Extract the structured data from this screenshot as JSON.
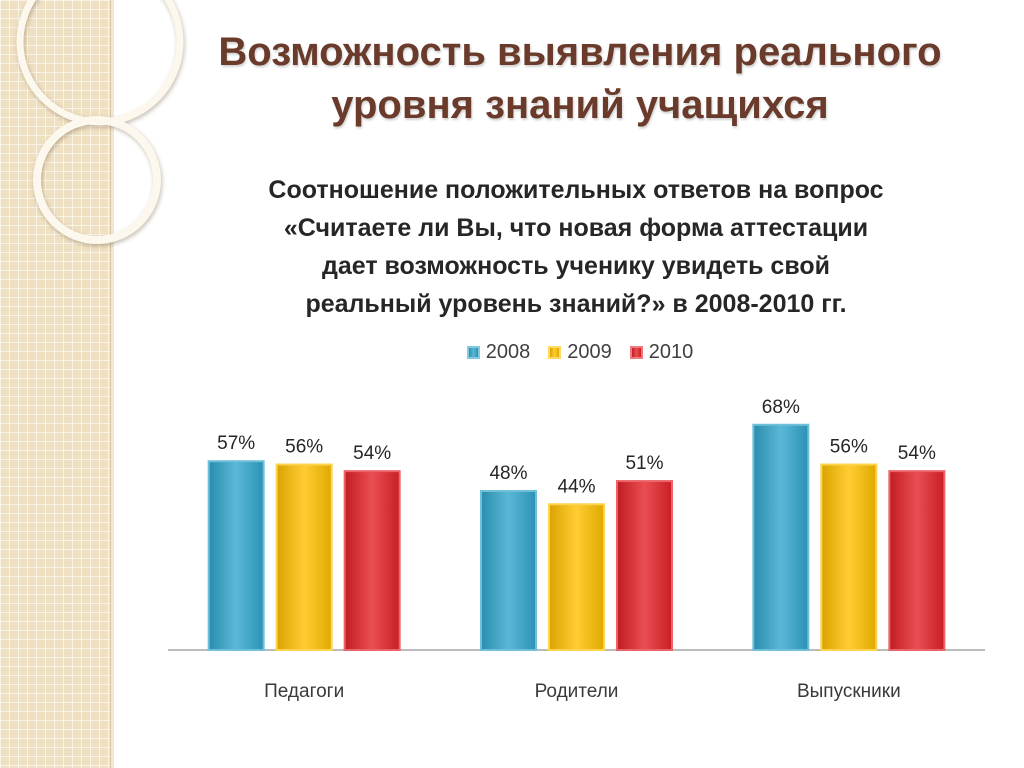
{
  "slide": {
    "title_lines": [
      "Возможность выявления реального",
      "уровня знаний учащихся"
    ],
    "title_color": "#6a3a2a"
  },
  "chart_data": {
    "type": "bar",
    "title_lines": [
      "Соотношение положительных ответов на вопрос",
      "«Считаете ли Вы, что новая форма аттестации",
      "дает возможность ученику увидеть свой",
      "реальный уровень знаний?» в 2008-2010 гг."
    ],
    "categories": [
      "Педагоги",
      "Родители",
      "Выпускники"
    ],
    "series": [
      {
        "name": "2008",
        "values": [
          57,
          48,
          68
        ],
        "color": "#31a6cc"
      },
      {
        "name": "2009",
        "values": [
          56,
          44,
          56
        ],
        "color": "#ffc000"
      },
      {
        "name": "2010",
        "values": [
          54,
          51,
          54
        ],
        "color": "#e32228"
      }
    ],
    "label_suffix": "%",
    "ylim": [
      0,
      80
    ],
    "grid": false,
    "legend": "top-center"
  }
}
